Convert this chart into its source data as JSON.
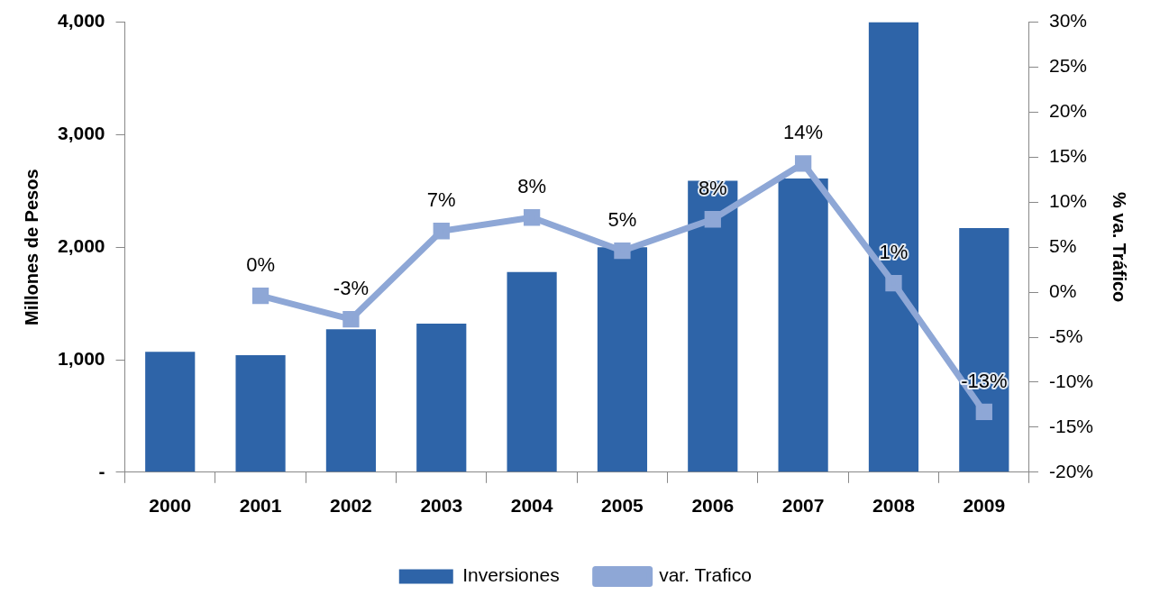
{
  "chart_data": {
    "type": "bar",
    "ylabel": "Millones de Pesos",
    "y2label": "% va. Tráfico",
    "categories": [
      "2000",
      "2001",
      "2002",
      "2003",
      "2004",
      "2005",
      "2006",
      "2007",
      "2008",
      "2009"
    ],
    "series": [
      {
        "name": "Inversiones",
        "color": "#2e64a8",
        "values": [
          1070,
          1040,
          1270,
          1320,
          1780,
          2000,
          2590,
          2610,
          4000,
          2170
        ]
      },
      {
        "name": "var. Trafico",
        "type": "line",
        "axis": "y2",
        "color": "#8ea7d6",
        "marker": "square",
        "values": [
          null,
          -0.4,
          -3.0,
          6.8,
          8.3,
          4.6,
          8.1,
          14.3,
          1.0,
          -13.3
        ],
        "value_labels": [
          null,
          "0%",
          "-3%",
          "7%",
          "8%",
          "5%",
          "8%",
          "14%",
          "1%",
          "-13%"
        ]
      }
    ],
    "ylim": [
      0,
      4000
    ],
    "yticks": [
      {
        "value": 0,
        "label": "-"
      },
      {
        "value": 1000,
        "label": "1,000"
      },
      {
        "value": 2000,
        "label": "2,000"
      },
      {
        "value": 3000,
        "label": "3,000"
      },
      {
        "value": 4000,
        "label": "4,000"
      }
    ],
    "y2lim": [
      -20,
      30
    ],
    "y2ticks": [
      {
        "value": -20,
        "label": "-20%"
      },
      {
        "value": -15,
        "label": "-15%"
      },
      {
        "value": -10,
        "label": "-10%"
      },
      {
        "value": -5,
        "label": "-5%"
      },
      {
        "value": 0,
        "label": "0%"
      },
      {
        "value": 5,
        "label": "5%"
      },
      {
        "value": 10,
        "label": "10%"
      },
      {
        "value": 15,
        "label": "15%"
      },
      {
        "value": 20,
        "label": "20%"
      },
      {
        "value": 25,
        "label": "25%"
      },
      {
        "value": 30,
        "label": "30%"
      }
    ],
    "grid": false,
    "legend": "bottom"
  }
}
